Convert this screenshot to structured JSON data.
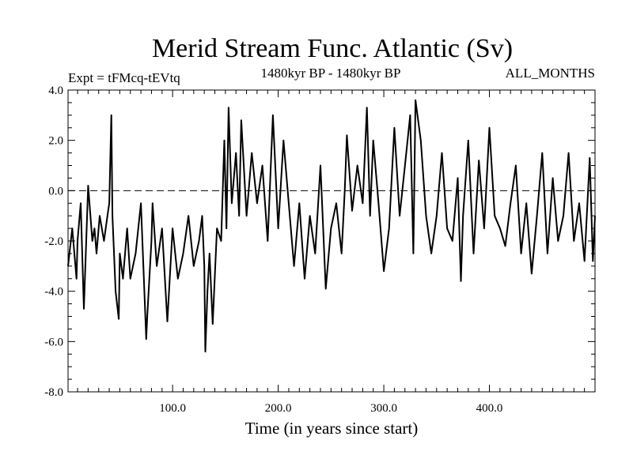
{
  "chart_data": {
    "type": "line",
    "title": "Merid Stream Func. Atlantic (Sv)",
    "subtitle_left": "Expt = tFMcq-tEVtq",
    "subtitle_center": "1480kyr BP - 1480kyr BP",
    "subtitle_right": "ALL_MONTHS",
    "xlabel": "Time (in years since start)",
    "ylabel": "",
    "xlim": [
      1,
      500
    ],
    "ylim": [
      -8.0,
      4.0
    ],
    "x_ticks": [
      100,
      200,
      300,
      400
    ],
    "x_tick_labels": [
      "100.0",
      "200.0",
      "300.0",
      "400.0"
    ],
    "y_ticks": [
      -8,
      -6,
      -4,
      -2,
      0,
      2,
      4
    ],
    "y_tick_labels": [
      "-8.0",
      "-6.0",
      "-4.0",
      "-2.0",
      "0.0",
      "2.0",
      "4.0"
    ],
    "reference_line": {
      "y": 0.0,
      "style": "dashed"
    },
    "series": [
      {
        "name": "Merid Stream Func. Atlantic",
        "color": "#000000",
        "x": [
          1,
          5,
          9,
          10,
          13,
          16,
          20,
          24,
          26,
          28,
          31,
          35,
          39,
          40,
          42,
          43,
          46,
          49,
          50,
          53,
          57,
          60,
          65,
          70,
          75,
          76,
          80,
          81,
          85,
          90,
          95,
          100,
          105,
          110,
          115,
          120,
          125,
          128,
          130,
          131,
          133,
          135,
          138,
          142,
          146,
          149,
          151,
          153,
          156,
          160,
          163,
          165,
          170,
          175,
          180,
          185,
          190,
          195,
          200,
          205,
          210,
          213,
          215,
          220,
          225,
          230,
          235,
          240,
          245,
          250,
          255,
          260,
          263,
          265,
          270,
          275,
          280,
          284,
          287,
          290,
          295,
          300,
          305,
          310,
          315,
          320,
          325,
          328,
          330,
          335,
          340,
          345,
          350,
          355,
          360,
          365,
          370,
          373,
          375,
          380,
          385,
          390,
          395,
          400,
          405,
          410,
          415,
          420,
          425,
          430,
          435,
          440,
          445,
          450,
          455,
          460,
          465,
          470,
          475,
          480,
          485,
          490,
          495,
          498,
          500
        ],
        "y": [
          -3.0,
          -1.5,
          -3.5,
          -2.0,
          -0.5,
          -4.7,
          0.2,
          -2.0,
          -1.5,
          -2.5,
          -1.0,
          -2.0,
          -0.8,
          -0.5,
          3.0,
          -1.0,
          -4.0,
          -5.1,
          -2.5,
          -3.5,
          -1.5,
          -3.5,
          -2.5,
          -0.5,
          -5.9,
          -5.0,
          -2.0,
          -0.5,
          -3.0,
          -1.5,
          -5.2,
          -1.5,
          -3.5,
          -2.5,
          -1.0,
          -3.0,
          -2.0,
          -1.0,
          -3.0,
          -6.4,
          -4.0,
          -2.5,
          -5.3,
          -1.5,
          -2.0,
          2.0,
          -1.5,
          3.3,
          -0.5,
          1.5,
          -1.0,
          2.8,
          -1.0,
          1.5,
          -0.5,
          1.0,
          -2.0,
          3.0,
          -1.5,
          2.0,
          -0.5,
          -2.0,
          -3.0,
          -0.5,
          -3.5,
          -1.0,
          -2.5,
          1.0,
          -3.9,
          -1.5,
          -0.5,
          -2.5,
          0.0,
          2.2,
          -0.8,
          1.0,
          -0.5,
          3.3,
          -1.0,
          2.0,
          -0.5,
          -3.2,
          -1.5,
          2.5,
          -1.0,
          1.0,
          3.0,
          -2.5,
          3.6,
          2.0,
          -1.0,
          -2.5,
          -1.0,
          1.5,
          -1.5,
          -2.0,
          0.5,
          -3.6,
          -1.0,
          2.0,
          -2.5,
          1.2,
          -1.5,
          2.5,
          -1.0,
          -1.5,
          -2.2,
          -0.5,
          1.0,
          -2.5,
          -0.5,
          -3.3,
          -1.0,
          1.5,
          -2.5,
          0.5,
          -2.0,
          -1.0,
          1.5,
          -2.0,
          -0.5,
          -2.8,
          1.3,
          -2.8,
          -1.0
        ]
      }
    ]
  }
}
